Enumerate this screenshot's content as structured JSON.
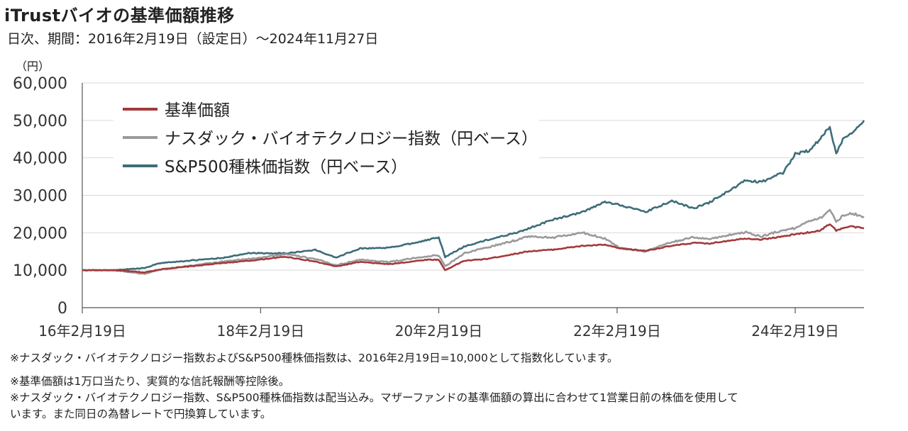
{
  "title": "iTrustバイオの基準価額推移",
  "subtitle": "日次、期間：2016年2月19日（設定日）～2024年11月27日",
  "unit": "（円）",
  "notes": [
    "※ナスダック・バイオテクノロジー指数およびS&P500種株価指数は、2016年2月19日=10,000として指数化しています。",
    "※基準価額は1万口当たり、実質的な信託報酬等控除後。",
    "※ナスダック・バイオテクノロジー指数、S&P500種株価指数は配当込み。マザーファンドの基準価額の算出に合わせて1営業日前の株価を使用して",
    "います。また同日の為替レートで円換算しています。"
  ],
  "colors": {
    "nav": "#a33a3c",
    "nasdaq_bio": "#9a9a9a",
    "sp500": "#3d6d77",
    "axis": "#555555",
    "grid": "#d9d9d9"
  },
  "chart_data": {
    "type": "line",
    "ylim": [
      0,
      60000
    ],
    "yticks": [
      0,
      10000,
      20000,
      30000,
      40000,
      50000,
      60000
    ],
    "ytick_labels": [
      "0",
      "10,000",
      "20,000",
      "30,000",
      "40,000",
      "50,000",
      "60,000"
    ],
    "xlim": [
      "2016-02-19",
      "2024-11-27"
    ],
    "xticks": [
      "2016-02-19",
      "2018-02-19",
      "2020-02-19",
      "2022-02-19",
      "2024-02-19"
    ],
    "xtick_labels": [
      "16年2月19日",
      "18年2月19日",
      "20年2月19日",
      "22年2月19日",
      "24年2月19日"
    ],
    "grid": "horizontal",
    "legend_position": "top-left",
    "series": [
      {
        "name": "基準価額",
        "color": "#a33a3c",
        "x": [
          "2016-02-19",
          "2016-06-30",
          "2016-11-01",
          "2017-01-01",
          "2017-06-01",
          "2017-10-01",
          "2018-01-01",
          "2018-06-01",
          "2018-10-01",
          "2018-12-25",
          "2019-04-01",
          "2019-08-01",
          "2019-12-31",
          "2020-02-19",
          "2020-03-16",
          "2020-06-01",
          "2020-09-01",
          "2020-12-31",
          "2021-02-15",
          "2021-06-01",
          "2021-10-01",
          "2021-12-31",
          "2022-03-01",
          "2022-06-15",
          "2022-10-01",
          "2022-12-31",
          "2023-03-01",
          "2023-06-01",
          "2023-08-01",
          "2023-10-01",
          "2023-12-31",
          "2024-02-19",
          "2024-04-15",
          "2024-06-01",
          "2024-07-10",
          "2024-08-05",
          "2024-09-01",
          "2024-10-01",
          "2024-11-27"
        ],
        "y": [
          10000,
          10000,
          9400,
          10200,
          11200,
          12000,
          12500,
          13600,
          12300,
          11000,
          12200,
          11600,
          12800,
          12800,
          10000,
          12500,
          13000,
          14400,
          15000,
          15500,
          16500,
          16800,
          15800,
          15200,
          16500,
          17300,
          17100,
          18000,
          18500,
          18200,
          19000,
          19600,
          20100,
          20600,
          22400,
          20600,
          21200,
          21700,
          21200
        ]
      },
      {
        "name": "ナスダック・バイオテクノロジー指数（円ベース）",
        "color": "#9a9a9a",
        "x": [
          "2016-02-19",
          "2016-06-30",
          "2016-11-01",
          "2017-01-01",
          "2017-06-01",
          "2017-10-01",
          "2018-01-01",
          "2018-06-01",
          "2018-10-01",
          "2018-12-25",
          "2019-04-01",
          "2019-08-01",
          "2019-12-31",
          "2020-02-19",
          "2020-03-16",
          "2020-06-01",
          "2020-09-01",
          "2020-12-31",
          "2021-02-15",
          "2021-06-01",
          "2021-10-01",
          "2021-12-31",
          "2022-03-01",
          "2022-06-15",
          "2022-10-01",
          "2022-12-31",
          "2023-03-01",
          "2023-06-01",
          "2023-08-01",
          "2023-10-01",
          "2023-12-31",
          "2024-02-19",
          "2024-04-15",
          "2024-06-01",
          "2024-07-10",
          "2024-08-05",
          "2024-09-01",
          "2024-10-01",
          "2024-11-27"
        ],
        "y": [
          10000,
          10000,
          9000,
          10200,
          11400,
          12400,
          13000,
          14300,
          13000,
          11300,
          12800,
          12200,
          13700,
          14000,
          11000,
          14500,
          16000,
          18000,
          19000,
          18700,
          20000,
          18500,
          16000,
          15000,
          17500,
          18800,
          18300,
          19500,
          20200,
          19000,
          20700,
          21200,
          23200,
          24000,
          26000,
          23000,
          24500,
          25300,
          24300
        ]
      },
      {
        "name": "S&P500種株価指数（円ベース）",
        "color": "#3d6d77",
        "x": [
          "2016-02-19",
          "2016-06-30",
          "2016-11-01",
          "2017-01-01",
          "2017-06-01",
          "2017-10-01",
          "2018-01-01",
          "2018-06-01",
          "2018-10-01",
          "2018-12-25",
          "2019-04-01",
          "2019-08-01",
          "2019-12-31",
          "2020-02-19",
          "2020-03-16",
          "2020-06-01",
          "2020-09-01",
          "2020-12-31",
          "2021-02-15",
          "2021-06-01",
          "2021-10-01",
          "2021-12-31",
          "2022-03-01",
          "2022-06-15",
          "2022-10-01",
          "2022-12-31",
          "2023-03-01",
          "2023-06-01",
          "2023-08-01",
          "2023-10-01",
          "2023-12-31",
          "2024-02-19",
          "2024-04-15",
          "2024-06-01",
          "2024-07-10",
          "2024-08-05",
          "2024-09-01",
          "2024-10-01",
          "2024-11-27"
        ],
        "y": [
          10000,
          10000,
          10600,
          11900,
          12700,
          13400,
          14600,
          14500,
          15400,
          13400,
          15800,
          16000,
          18000,
          18800,
          13500,
          16300,
          18000,
          20000,
          21000,
          23500,
          25500,
          28200,
          27500,
          25500,
          28500,
          26500,
          28000,
          31500,
          34000,
          33500,
          36000,
          41000,
          42000,
          45000,
          48500,
          41000,
          45000,
          46500,
          50000
        ]
      }
    ]
  }
}
